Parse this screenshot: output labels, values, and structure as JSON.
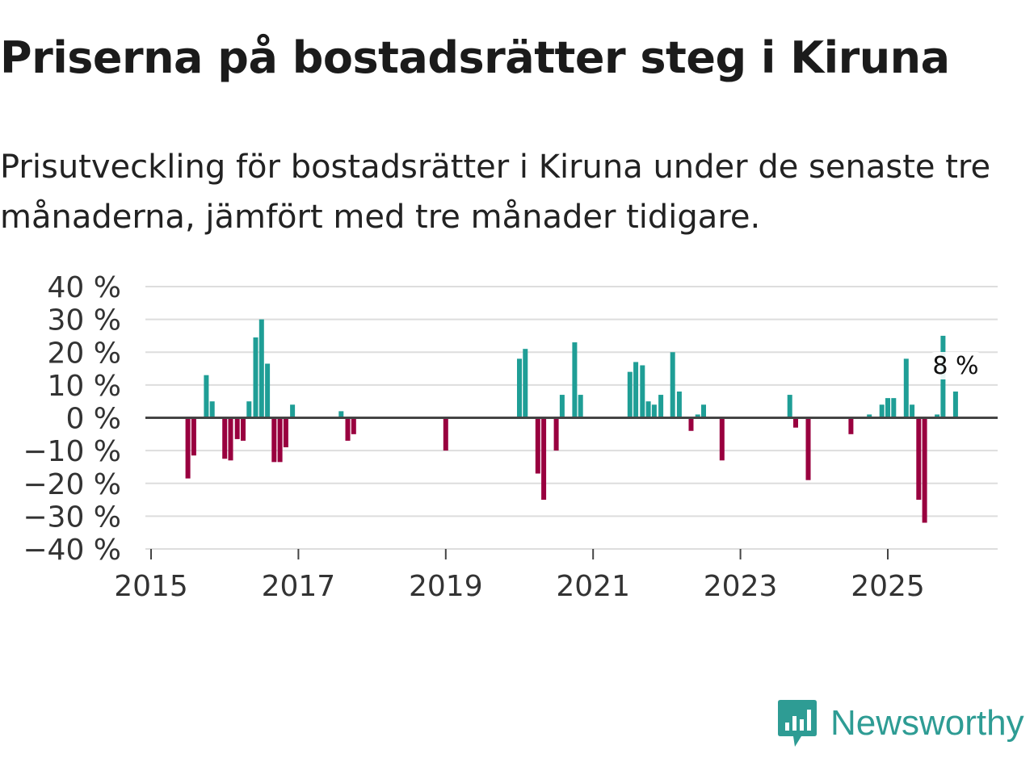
{
  "title": "Priserna på bostadsrätter steg i Kiruna",
  "subtitle": "Prisutveckling för bostadsrätter i Kiruna under de senaste tre månaderna, jämfört med tre månader tidigare.",
  "brand": {
    "name": "Newsworthy",
    "color": "#2e9c94"
  },
  "colors": {
    "positive": "#1f9e96",
    "negative": "#99003f",
    "grid": "#dddddd",
    "zero": "#444444"
  },
  "chart_data": {
    "type": "bar",
    "title": "Priserna på bostadsrätter steg i Kiruna",
    "xlabel": "",
    "ylabel": "",
    "ylim": [
      -40,
      40
    ],
    "xlim": [
      2015.0,
      2026.8
    ],
    "yticks": [
      40,
      30,
      20,
      10,
      0,
      -10,
      -20,
      -30,
      -40
    ],
    "ytick_labels": [
      "40 %",
      "30 %",
      "20 %",
      "10 %",
      "0 %",
      "−10 %",
      "−20 %",
      "−30 %",
      "−40 %"
    ],
    "xticks": [
      2015,
      2017,
      2019,
      2021,
      2023,
      2025
    ],
    "xtick_labels": [
      "2015",
      "2017",
      "2019",
      "2021",
      "2023",
      "2025"
    ],
    "grid": true,
    "annotation": {
      "label": "8 %",
      "x": 2025.92,
      "y": 8
    },
    "series": [
      {
        "name": "Prisutveckling",
        "points": [
          {
            "x": 2015.5,
            "y": -18.5
          },
          {
            "x": 2015.58,
            "y": -11.5
          },
          {
            "x": 2015.75,
            "y": 13
          },
          {
            "x": 2015.83,
            "y": 5
          },
          {
            "x": 2016.0,
            "y": -12.5
          },
          {
            "x": 2016.08,
            "y": -13
          },
          {
            "x": 2016.17,
            "y": -6.5
          },
          {
            "x": 2016.25,
            "y": -7
          },
          {
            "x": 2016.33,
            "y": 5
          },
          {
            "x": 2016.42,
            "y": 24.5
          },
          {
            "x": 2016.5,
            "y": 30
          },
          {
            "x": 2016.58,
            "y": 16.5
          },
          {
            "x": 2016.67,
            "y": -13.5
          },
          {
            "x": 2016.75,
            "y": -13.5
          },
          {
            "x": 2016.83,
            "y": -9
          },
          {
            "x": 2016.92,
            "y": 4
          },
          {
            "x": 2017.58,
            "y": 2
          },
          {
            "x": 2017.67,
            "y": -7
          },
          {
            "x": 2017.75,
            "y": -5
          },
          {
            "x": 2019.0,
            "y": -10
          },
          {
            "x": 2020.0,
            "y": 18
          },
          {
            "x": 2020.08,
            "y": 21
          },
          {
            "x": 2020.25,
            "y": -17
          },
          {
            "x": 2020.33,
            "y": -25
          },
          {
            "x": 2020.5,
            "y": -10
          },
          {
            "x": 2020.58,
            "y": 7
          },
          {
            "x": 2020.75,
            "y": 23
          },
          {
            "x": 2020.83,
            "y": 7
          },
          {
            "x": 2021.5,
            "y": 14
          },
          {
            "x": 2021.58,
            "y": 17
          },
          {
            "x": 2021.67,
            "y": 16
          },
          {
            "x": 2021.75,
            "y": 5
          },
          {
            "x": 2021.83,
            "y": 4
          },
          {
            "x": 2021.92,
            "y": 7
          },
          {
            "x": 2022.08,
            "y": 20
          },
          {
            "x": 2022.17,
            "y": 8
          },
          {
            "x": 2022.33,
            "y": -4
          },
          {
            "x": 2022.42,
            "y": 1
          },
          {
            "x": 2022.5,
            "y": 4
          },
          {
            "x": 2022.75,
            "y": -13
          },
          {
            "x": 2023.67,
            "y": 7
          },
          {
            "x": 2023.75,
            "y": -3
          },
          {
            "x": 2023.92,
            "y": -19
          },
          {
            "x": 2024.5,
            "y": -5
          },
          {
            "x": 2024.75,
            "y": 1
          },
          {
            "x": 2024.92,
            "y": 4
          },
          {
            "x": 2025.0,
            "y": 6
          },
          {
            "x": 2025.08,
            "y": 6
          },
          {
            "x": 2025.25,
            "y": 18
          },
          {
            "x": 2025.33,
            "y": 4
          },
          {
            "x": 2025.42,
            "y": -25
          },
          {
            "x": 2025.5,
            "y": -32
          },
          {
            "x": 2025.67,
            "y": 1
          },
          {
            "x": 2025.75,
            "y": 25
          },
          {
            "x": 2025.92,
            "y": 8
          }
        ]
      }
    ]
  }
}
